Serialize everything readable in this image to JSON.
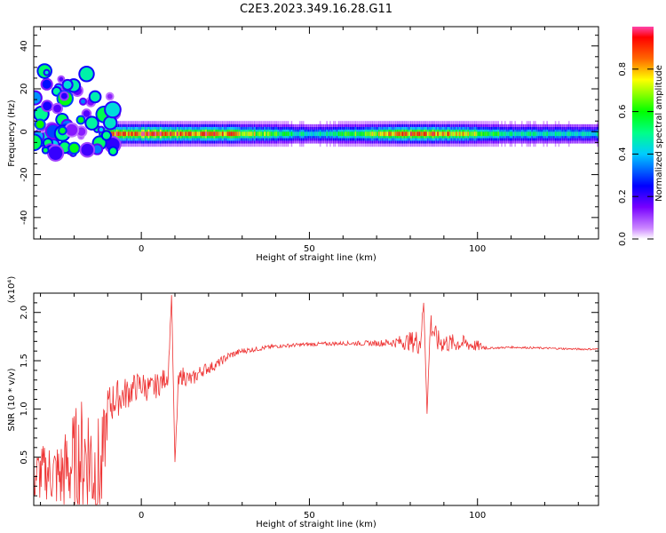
{
  "title": "C2E3.2023.349.16.28.G11",
  "colors": {
    "snr_line": "#ee3333",
    "axis": "#000000",
    "background": "#ffffff"
  },
  "chart_data": [
    {
      "type": "heatmap",
      "xlabel": "Height of straight line (km)",
      "ylabel": "Frequency (Hz)",
      "xlim": [
        -32,
        136
      ],
      "ylim": [
        -50,
        49
      ],
      "x_ticks": [
        0,
        50,
        100
      ],
      "y_ticks": [
        -40,
        -20,
        0,
        20,
        40
      ],
      "y_tick_labels": [
        "-40",
        "-20",
        "0",
        "20",
        "40"
      ],
      "colorbar": {
        "label": "Normalized spectral amplitude",
        "range": [
          0,
          1
        ],
        "ticks": [
          0.0,
          0.2,
          0.4,
          0.6,
          0.8
        ],
        "tick_labels": [
          "0.0",
          "0.2",
          "0.4",
          "0.6",
          "0.8"
        ]
      },
      "band": {
        "center_hz": -1,
        "description_points": [
          {
            "x": -10,
            "amp": 0.9
          },
          {
            "x": -5,
            "amp": 0.88
          },
          {
            "x": 4,
            "amp": 0.95
          },
          {
            "x": 12,
            "amp": 0.85
          },
          {
            "x": 20,
            "amp": 0.9
          },
          {
            "x": 26,
            "amp": 0.82
          },
          {
            "x": 50,
            "amp": 0.45
          },
          {
            "x": 80,
            "amp": 0.85
          },
          {
            "x": 90,
            "amp": 0.85
          },
          {
            "x": 110,
            "amp": 0.5
          },
          {
            "x": 130,
            "amp": 0.45
          }
        ]
      }
    },
    {
      "type": "line",
      "xlabel": "Height of straight line (km)",
      "ylabel": "SNR (10 * v/v)",
      "multiplier_label": "(x10⁴)",
      "xlim": [
        -32,
        136
      ],
      "ylim": [
        0.0,
        2.2
      ],
      "x_ticks": [
        0,
        50,
        100
      ],
      "y_ticks": [
        0.5,
        1.0,
        1.5,
        2.0
      ],
      "y_tick_labels": [
        "0.5",
        "1.0",
        "1.5",
        "2.0"
      ],
      "series": [
        {
          "x": [
            -32,
            -28,
            -24,
            -20,
            -16,
            -14,
            -12,
            -10,
            -8,
            -5,
            -2,
            0,
            3,
            6,
            8,
            9,
            10,
            11,
            12,
            15,
            18,
            22,
            26,
            30,
            40,
            50,
            60,
            70,
            75,
            80,
            83,
            84,
            85,
            86,
            88,
            92,
            96,
            100,
            104,
            110,
            120,
            130,
            136
          ],
          "y": [
            0.3,
            0.35,
            0.3,
            0.45,
            0.55,
            0.4,
            0.25,
            1.0,
            1.1,
            1.15,
            1.22,
            1.25,
            1.2,
            1.28,
            1.35,
            2.18,
            0.45,
            1.25,
            1.35,
            1.3,
            1.4,
            1.45,
            1.55,
            1.6,
            1.65,
            1.67,
            1.68,
            1.68,
            1.69,
            1.7,
            1.7,
            2.1,
            0.95,
            1.9,
            1.7,
            1.68,
            1.68,
            1.65,
            1.63,
            1.64,
            1.63,
            1.62,
            1.62
          ],
          "amplitude": [
            0.3,
            0.3,
            0.4,
            0.55,
            0.7,
            0.7,
            0.6,
            0.25,
            0.2,
            0.18,
            0.15,
            0.15,
            0.14,
            0.12,
            0.1,
            0.0,
            0.0,
            0.1,
            0.1,
            0.08,
            0.07,
            0.05,
            0.04,
            0.03,
            0.02,
            0.02,
            0.02,
            0.03,
            0.05,
            0.1,
            0.15,
            0.0,
            0.0,
            0.15,
            0.12,
            0.1,
            0.08,
            0.06,
            0.01,
            0.01,
            0.01,
            0.01,
            0.01
          ]
        }
      ]
    }
  ]
}
